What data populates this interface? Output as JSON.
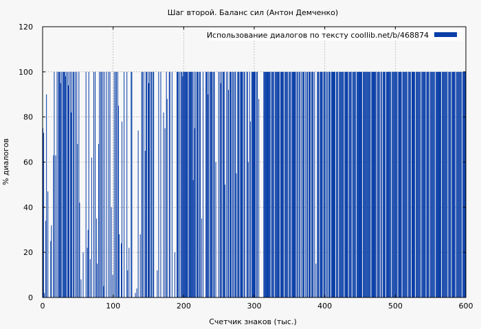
{
  "chart_data": {
    "type": "bar",
    "title": "Шаг второй. Баланс сил (Антон Демченко)",
    "xlabel": "Счетчик знаков (тыс.)",
    "ylabel": "% диалогов",
    "xlim": [
      0,
      600
    ],
    "ylim": [
      0,
      120
    ],
    "xticks": [
      "0",
      "100",
      "200",
      "300",
      "400",
      "500",
      "600"
    ],
    "yticks": [
      "0",
      "20",
      "40",
      "60",
      "80",
      "100",
      "120"
    ],
    "grid": true,
    "legend_position": "top-right",
    "series": [
      {
        "name": "Использование диалогов по тексту  coollib.net/b/468874",
        "color": "#0a3fa8",
        "x_step_thousands": 1,
        "values": [
          75,
          73,
          2,
          0,
          34,
          90,
          0,
          47,
          0,
          0,
          0,
          25,
          32,
          0,
          0,
          63,
          100,
          0,
          63,
          0,
          100,
          0,
          100,
          100,
          100,
          95,
          100,
          0,
          100,
          100,
          100,
          100,
          98,
          100,
          0,
          100,
          94,
          100,
          0,
          100,
          82,
          100,
          0,
          100,
          100,
          0,
          100,
          0,
          100,
          68,
          0,
          100,
          42,
          0,
          8,
          0,
          0,
          20,
          0,
          0,
          0,
          100,
          0,
          22,
          30,
          100,
          0,
          17,
          0,
          62,
          0,
          0,
          100,
          0,
          100,
          0,
          35,
          15,
          0,
          68,
          100,
          0,
          100,
          100,
          0,
          100,
          5,
          100,
          0,
          0,
          100,
          0,
          0,
          100,
          0,
          100,
          0,
          40,
          0,
          10,
          0,
          100,
          0,
          100,
          100,
          0,
          100,
          85,
          28,
          0,
          0,
          24,
          78,
          0,
          0,
          100,
          0,
          0,
          0,
          100,
          12,
          0,
          22,
          0,
          0,
          100,
          100,
          0,
          0,
          0,
          0,
          2,
          0,
          4,
          0,
          74,
          0,
          0,
          28,
          0,
          100,
          100,
          0,
          100,
          0,
          65,
          100,
          100,
          0,
          100,
          95,
          100,
          0,
          100,
          100,
          0,
          100,
          100,
          0,
          0,
          0,
          0,
          12,
          0,
          100,
          0,
          0,
          100,
          0,
          0,
          0,
          82,
          0,
          75,
          0,
          100,
          88,
          0,
          0,
          100,
          100,
          0,
          0,
          100,
          0,
          0,
          0,
          20,
          0,
          0,
          100,
          100,
          100,
          0,
          100,
          0,
          100,
          100,
          98,
          100,
          100,
          100,
          100,
          100,
          100,
          100,
          0,
          100,
          100,
          100,
          100,
          100,
          100,
          52,
          100,
          75,
          100,
          0,
          100,
          100,
          100,
          0,
          100,
          100,
          0,
          35,
          0,
          100,
          0,
          0,
          0,
          100,
          100,
          100,
          90,
          100,
          0,
          100,
          100,
          100,
          100,
          0,
          100,
          100,
          0,
          60,
          0,
          0,
          0,
          100,
          0,
          100,
          95,
          100,
          0,
          100,
          100,
          100,
          50,
          0,
          100,
          0,
          100,
          92,
          0,
          100,
          100,
          100,
          0,
          100,
          100,
          0,
          100,
          100,
          55,
          0,
          100,
          100,
          100,
          0,
          100,
          100,
          100,
          100,
          0,
          100,
          100,
          0,
          0,
          100,
          100,
          60,
          0,
          100,
          78,
          0,
          100,
          100,
          100,
          100,
          100,
          100,
          0,
          100,
          100,
          0,
          88,
          0,
          0,
          0,
          0,
          0,
          0,
          100,
          100,
          100,
          100,
          100,
          100,
          100,
          100,
          100,
          100,
          0,
          100,
          100,
          100,
          100,
          0,
          100,
          100,
          100,
          100,
          100,
          100,
          100,
          0,
          100,
          100,
          100,
          100,
          100,
          0,
          100,
          100,
          100,
          100,
          100,
          0,
          100,
          100,
          100,
          0,
          100,
          100,
          100,
          100,
          100,
          100,
          0,
          100,
          100,
          0,
          100,
          100,
          0,
          100,
          0,
          100,
          100,
          100,
          0,
          100,
          0,
          100,
          100,
          0,
          100,
          100,
          100,
          0,
          100,
          100,
          100,
          0,
          100,
          0,
          15,
          0,
          100,
          100,
          100,
          0,
          100,
          100,
          100,
          100,
          0,
          100,
          100,
          100,
          0,
          100,
          100,
          0,
          100,
          100,
          100,
          0,
          100,
          100,
          100,
          100,
          100,
          100,
          0,
          100,
          100,
          100,
          0,
          100,
          100,
          100,
          100,
          100,
          100,
          100,
          0,
          100,
          100,
          100,
          100,
          100,
          0,
          100,
          100,
          100,
          100,
          0,
          100,
          100,
          100,
          100,
          100,
          0,
          100,
          100,
          100,
          100,
          100,
          100,
          100,
          100,
          0,
          100,
          100,
          100,
          100,
          100,
          100,
          100,
          100,
          100,
          100,
          100,
          0,
          100,
          100,
          100,
          100,
          100,
          100,
          100,
          0,
          100,
          100,
          100,
          100,
          0,
          100,
          100,
          0,
          100,
          100,
          100,
          100,
          0,
          100,
          100,
          100,
          100,
          100,
          100,
          100,
          0,
          100,
          100,
          100,
          100,
          100,
          100,
          100,
          100,
          0,
          100,
          100,
          100,
          100,
          100,
          0,
          100,
          100,
          100,
          100,
          100,
          100,
          100,
          0,
          100,
          100,
          100,
          100,
          0,
          100,
          100,
          100,
          100,
          100,
          0,
          100,
          100,
          100,
          100,
          100,
          100,
          100,
          0,
          100,
          100,
          100,
          100,
          100,
          100,
          0,
          100,
          100,
          100,
          100,
          0,
          100,
          100,
          100,
          100,
          100,
          100,
          100,
          0,
          100,
          100,
          100,
          100,
          100,
          100,
          100,
          100,
          0,
          100,
          100,
          100,
          100,
          100,
          100,
          100,
          100,
          0,
          100,
          100,
          100,
          100,
          0,
          100,
          100,
          100,
          100,
          100,
          0,
          100,
          100,
          100,
          100,
          100,
          100,
          100,
          100,
          0,
          100,
          100,
          100,
          100,
          100,
          100
        ]
      }
    ]
  }
}
